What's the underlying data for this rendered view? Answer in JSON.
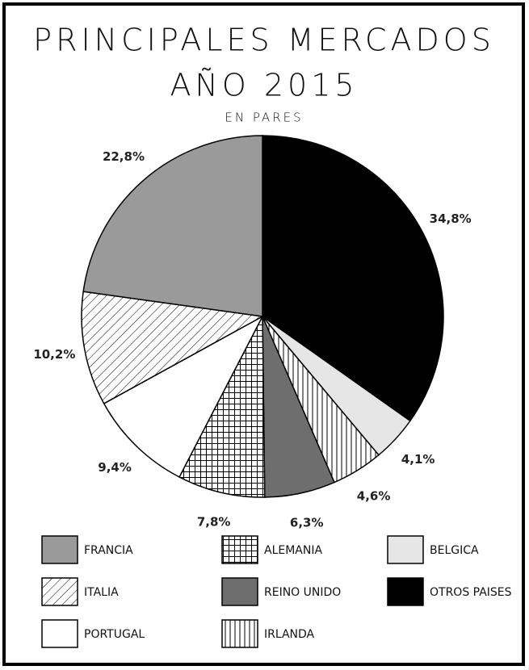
{
  "chart_data": {
    "type": "pie",
    "title": "PRINCIPALES MERCADOS",
    "subtitle": "AÑO 2015",
    "annotation": "EN PARES",
    "categories": [
      "OTROS PAISES",
      "BELGICA",
      "IRLANDA",
      "REINO UNIDO",
      "ALEMANIA",
      "PORTUGAL",
      "ITALIA",
      "FRANCIA"
    ],
    "values": [
      34.8,
      4.1,
      4.6,
      6.3,
      7.8,
      9.4,
      10.2,
      22.8
    ],
    "value_labels": [
      "34,8%",
      "4,1%",
      "4,6%",
      "6,3%",
      "7,8%",
      "9,4%",
      "10,2%",
      "22,8%"
    ],
    "colors": [
      "#000000",
      "#e6e6e6",
      "#ffffff",
      "#6e6e6e",
      "#ffffff",
      "#ffffff",
      "#ffffff",
      "#9a9a9a"
    ],
    "patterns": [
      "solid",
      "solid",
      "vertical",
      "solid",
      "grid",
      "solid",
      "diagonal",
      "solid"
    ],
    "legend": "bottom"
  }
}
